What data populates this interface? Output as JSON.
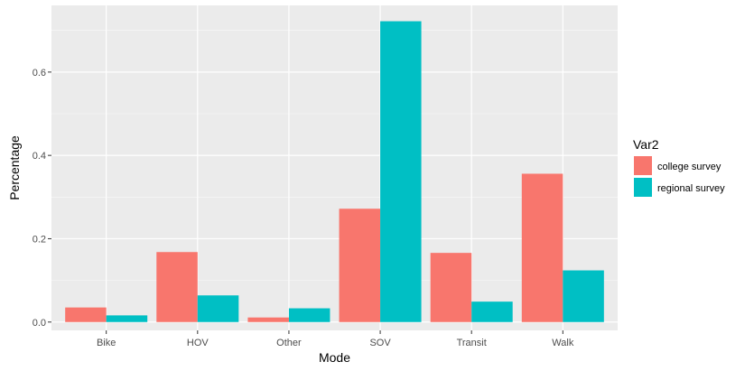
{
  "chart_data": {
    "type": "bar",
    "title": "",
    "xlabel": "Mode",
    "ylabel": "Percentage",
    "categories": [
      "Bike",
      "HOV",
      "Other",
      "SOV",
      "Transit",
      "Walk"
    ],
    "series": [
      {
        "name": "college survey",
        "color": "#F8766D",
        "values": [
          0.035,
          0.168,
          0.011,
          0.272,
          0.166,
          0.356
        ]
      },
      {
        "name": "regional survey",
        "color": "#00BFC4",
        "values": [
          0.016,
          0.064,
          0.033,
          0.722,
          0.049,
          0.124
        ]
      }
    ],
    "ylim": [
      -0.02,
      0.76
    ],
    "yticks": [
      0.0,
      0.2,
      0.4,
      0.6
    ],
    "ytick_labels": [
      "0.0",
      "0.2",
      "0.4",
      "0.6"
    ],
    "legend": {
      "title": "Var2",
      "position": "right"
    },
    "panel_background": "#EBEBEB",
    "grid_color": "#FFFFFF"
  }
}
